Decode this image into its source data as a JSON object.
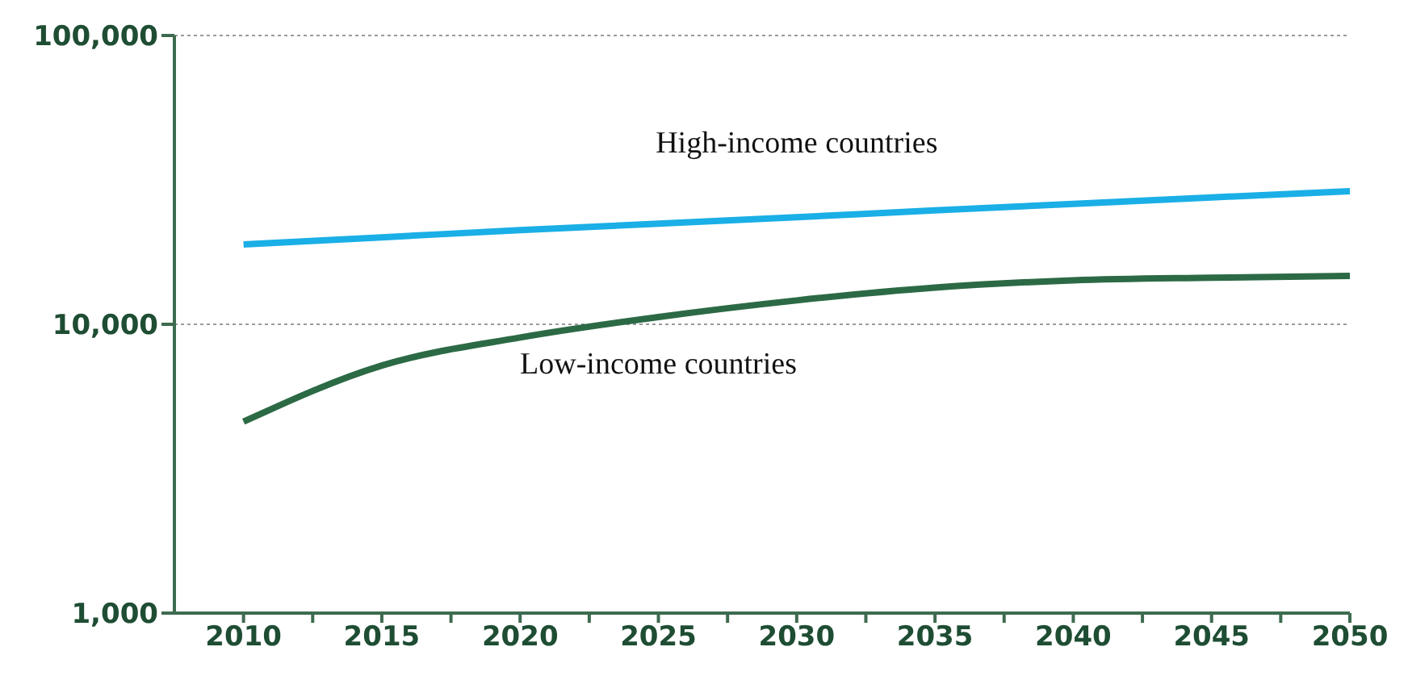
{
  "chart_data": {
    "type": "line",
    "log": "y",
    "grid": "y",
    "marker": "none",
    "line_style": "solid",
    "x": [
      2010,
      2015,
      2020,
      2025,
      2030,
      2035,
      2040,
      2045,
      2050
    ],
    "xlim": [
      2007.5,
      2050
    ],
    "xticks": [
      2010,
      {
        "value": 2012.5,
        "label": null
      },
      2015,
      {
        "value": 2017.5,
        "label": null
      },
      2020,
      {
        "value": 2022.5,
        "label": null
      },
      2025,
      {
        "value": 2027.5,
        "label": null
      },
      2030,
      {
        "value": 2032.5,
        "label": null
      },
      2035,
      {
        "value": 2037.5,
        "label": null
      },
      2040,
      {
        "value": 2042.5,
        "label": null
      },
      2045,
      {
        "value": 2047.5,
        "label": null
      },
      2050
    ],
    "ylim": [
      1000,
      100000
    ],
    "yticks": [
      {
        "value": 1000,
        "label": "1,000"
      },
      {
        "value": 10000,
        "label": "10,000"
      },
      {
        "value": 100000,
        "label": "100,000"
      }
    ],
    "series": [
      {
        "name": "High-income countries",
        "color": "#1aafe6",
        "values": [
          18900,
          20000,
          21200,
          22300,
          23500,
          24800,
          26100,
          27500,
          28900
        ]
      },
      {
        "name": "Low-income countries",
        "color": "#2c6a45",
        "values": [
          4600,
          7200,
          9000,
          10600,
          12100,
          13400,
          14200,
          14500,
          14700
        ]
      }
    ]
  }
}
